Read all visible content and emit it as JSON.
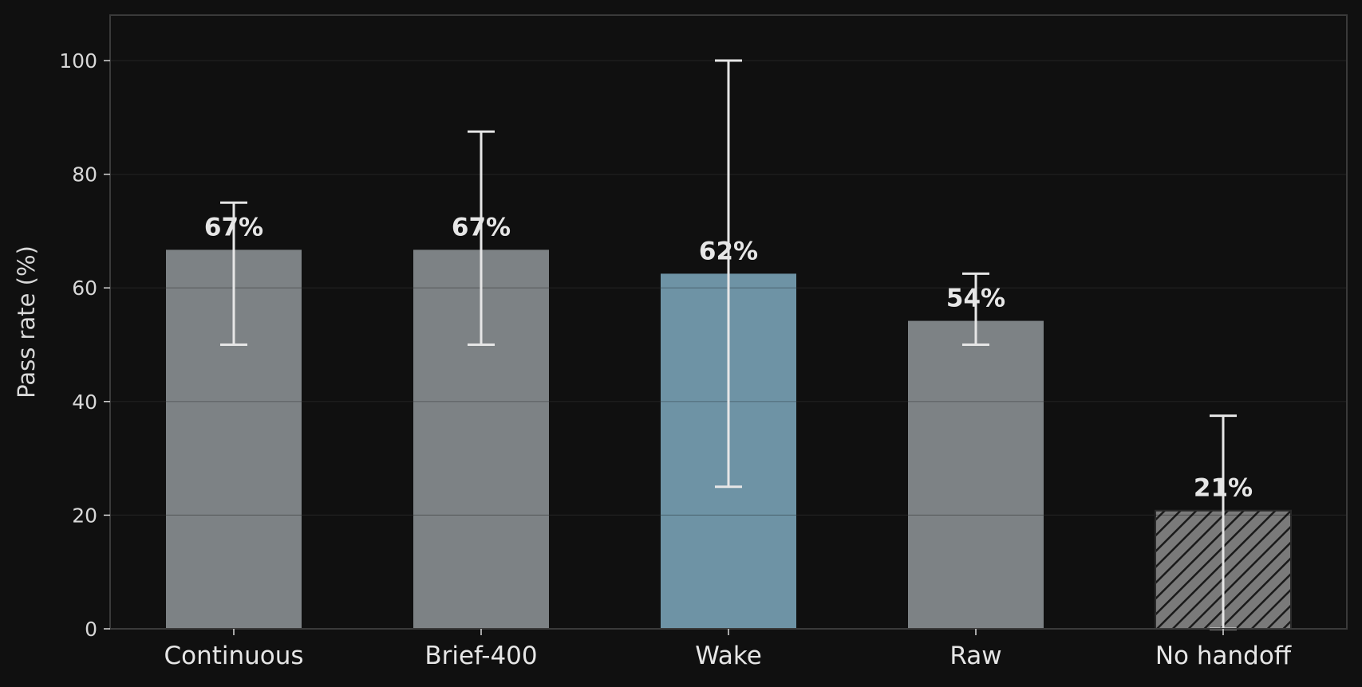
{
  "chart_data": {
    "type": "bar",
    "title": "",
    "xlabel": "",
    "ylabel": "Pass rate (%)",
    "ylim": [
      0,
      108
    ],
    "yticks": [
      0,
      20,
      40,
      60,
      80,
      100
    ],
    "ytick_labels": [
      "0",
      "20",
      "40",
      "60",
      "80",
      "100"
    ],
    "grid": true,
    "categories": [
      "Continuous",
      "Brief-400",
      "Wake",
      "Raw",
      "No handoff"
    ],
    "values": [
      66.7,
      66.7,
      62.5,
      54.2,
      20.8
    ],
    "value_labels": [
      "67%",
      "67%",
      "62%",
      "54%",
      "21%"
    ],
    "error_low": [
      50,
      50,
      25,
      50,
      0
    ],
    "error_high": [
      75,
      87.5,
      100,
      62.5,
      37.5
    ],
    "bar_colors": [
      "#7d8285",
      "#7d8285",
      "#6e93a5",
      "#7d8285",
      "#7a7a7a"
    ],
    "hatched": [
      false,
      false,
      false,
      false,
      true
    ],
    "colors": {
      "background": "#101010",
      "grid": "#2a2a2a",
      "text": "#e6e6e6",
      "errorbar": "#e6e6e6",
      "axis": "#3a3a3a"
    }
  }
}
